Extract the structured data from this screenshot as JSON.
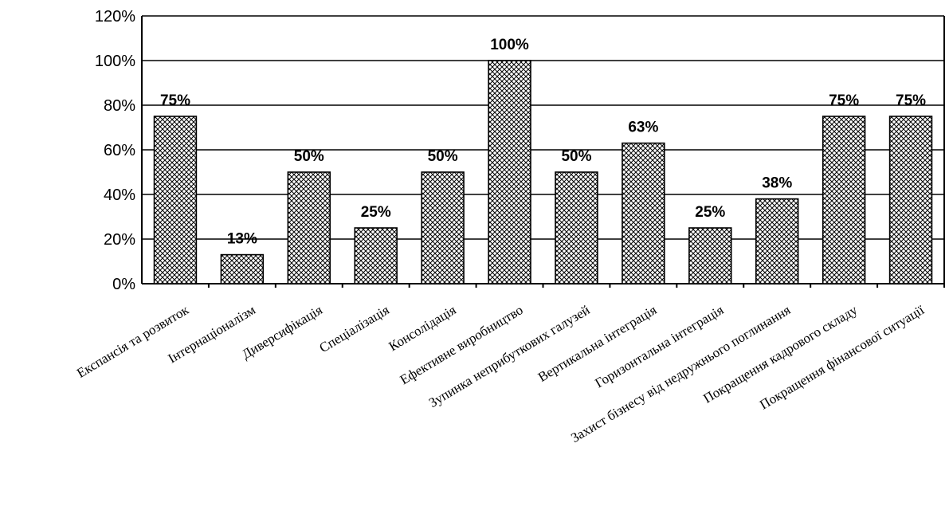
{
  "chart_data": {
    "type": "bar",
    "categories": [
      "Експансія та розвиток",
      "Інтернаціоналізм",
      "Диверсифікація",
      "Спеціалізація",
      "Консолідація",
      "Ефективне виробництво",
      "Зупинка неприбуткових галузей",
      "Вертикальна інтеграція",
      "Горизонтальна інтеграція",
      "Захист бізнесу від недружнього поглинання",
      "Покращення кадрового складу",
      "Покращення фінансової ситуації"
    ],
    "values": [
      75,
      13,
      50,
      25,
      50,
      100,
      50,
      63,
      25,
      38,
      75,
      75
    ],
    "data_labels": [
      "75%",
      "13%",
      "50%",
      "25%",
      "50%",
      "100%",
      "50%",
      "63%",
      "25%",
      "38%",
      "75%",
      "75%"
    ],
    "y_ticks": [
      "0%",
      "20%",
      "40%",
      "60%",
      "80%",
      "100%",
      "120%"
    ],
    "ylim": [
      0,
      120
    ],
    "title": "",
    "xlabel": "",
    "ylabel": "",
    "grid": true,
    "legend": "none",
    "bar_fill": "crosshatch",
    "colors": {
      "bar_line": "#000000",
      "background": "#ffffff"
    }
  }
}
